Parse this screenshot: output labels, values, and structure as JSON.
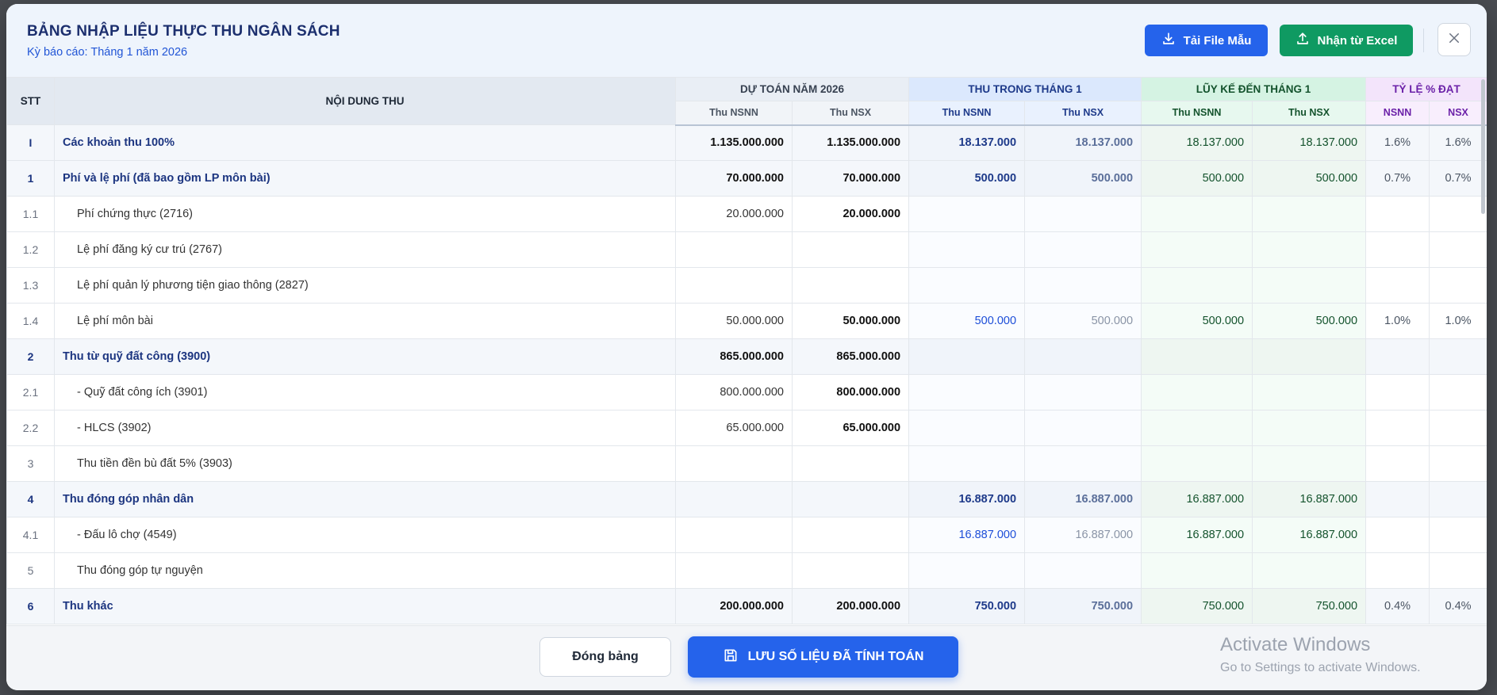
{
  "header": {
    "title": "BẢNG NHẬP LIỆU THỰC THU NGÂN SÁCH",
    "subtitle": "Kỳ báo cáo: Tháng 1 năm 2026",
    "btn_template": "Tải File Mẫu",
    "btn_excel": "Nhận từ Excel"
  },
  "table": {
    "col_stt": "STT",
    "col_content": "NỘI DUNG THU",
    "group_estimate": "DỰ TOÁN NĂM 2026",
    "group_month": "THU TRONG THÁNG 1",
    "group_cumulative": "LŨY KẾ ĐẾN THÁNG 1",
    "group_rate": "TỶ LỆ % ĐẠT",
    "sub_nsnn": "Thu NSNN",
    "sub_nsx": "Thu NSX",
    "sub_rate_nsnn": "NSNN",
    "sub_rate_nsx": "NSX",
    "rows": [
      {
        "stt": "I",
        "content": "Các khoản thu 100%",
        "group": true,
        "dt_nsnn": "1.135.000.000",
        "dt_nsx": "1.135.000.000",
        "tt_nsnn": "18.137.000",
        "tt_nsx": "18.137.000",
        "lk_nsnn": "18.137.000",
        "lk_nsx": "18.137.000",
        "tl_nsnn": "1.6%",
        "tl_nsx": "1.6%"
      },
      {
        "stt": "1",
        "content": "Phí và lệ phí (đã bao gồm LP môn bài)",
        "group": true,
        "dt_nsnn": "70.000.000",
        "dt_nsx": "70.000.000",
        "tt_nsnn": "500.000",
        "tt_nsx": "500.000",
        "lk_nsnn": "500.000",
        "lk_nsx": "500.000",
        "tl_nsnn": "0.7%",
        "tl_nsx": "0.7%"
      },
      {
        "stt": "1.1",
        "content": "Phí chứng thực (2716)",
        "group": false,
        "dt_nsnn": "20.000.000",
        "dt_nsx": "20.000.000",
        "tt_nsnn": "",
        "tt_nsx": "",
        "lk_nsnn": "",
        "lk_nsx": "",
        "tl_nsnn": "",
        "tl_nsx": ""
      },
      {
        "stt": "1.2",
        "content": "Lệ phí đăng ký cư trú (2767)",
        "group": false,
        "dt_nsnn": "",
        "dt_nsx": "",
        "tt_nsnn": "",
        "tt_nsx": "",
        "lk_nsnn": "",
        "lk_nsx": "",
        "tl_nsnn": "",
        "tl_nsx": ""
      },
      {
        "stt": "1.3",
        "content": "Lệ phí quản lý phương tiện giao thông (2827)",
        "group": false,
        "dt_nsnn": "",
        "dt_nsx": "",
        "tt_nsnn": "",
        "tt_nsx": "",
        "lk_nsnn": "",
        "lk_nsx": "",
        "tl_nsnn": "",
        "tl_nsx": ""
      },
      {
        "stt": "1.4",
        "content": "Lệ phí môn bài",
        "group": false,
        "dt_nsnn": "50.000.000",
        "dt_nsx": "50.000.000",
        "tt_nsnn": "500.000",
        "tt_nsx": "500.000",
        "lk_nsnn": "500.000",
        "lk_nsx": "500.000",
        "tl_nsnn": "1.0%",
        "tl_nsx": "1.0%"
      },
      {
        "stt": "2",
        "content": "Thu từ quỹ đất công (3900)",
        "group": true,
        "dt_nsnn": "865.000.000",
        "dt_nsx": "865.000.000",
        "tt_nsnn": "",
        "tt_nsx": "",
        "lk_nsnn": "",
        "lk_nsx": "",
        "tl_nsnn": "",
        "tl_nsx": ""
      },
      {
        "stt": "2.1",
        "content": "- Quỹ đất công ích (3901)",
        "group": false,
        "dt_nsnn": "800.000.000",
        "dt_nsx": "800.000.000",
        "tt_nsnn": "",
        "tt_nsx": "",
        "lk_nsnn": "",
        "lk_nsx": "",
        "tl_nsnn": "",
        "tl_nsx": ""
      },
      {
        "stt": "2.2",
        "content": "- HLCS (3902)",
        "group": false,
        "dt_nsnn": "65.000.000",
        "dt_nsx": "65.000.000",
        "tt_nsnn": "",
        "tt_nsx": "",
        "lk_nsnn": "",
        "lk_nsx": "",
        "tl_nsnn": "",
        "tl_nsx": ""
      },
      {
        "stt": "3",
        "content": "Thu tiền đền bù đất 5% (3903)",
        "group": false,
        "dt_nsnn": "",
        "dt_nsx": "",
        "tt_nsnn": "",
        "tt_nsx": "",
        "lk_nsnn": "",
        "lk_nsx": "",
        "tl_nsnn": "",
        "tl_nsx": ""
      },
      {
        "stt": "4",
        "content": "Thu đóng góp nhân dân",
        "group": true,
        "dt_nsnn": "",
        "dt_nsx": "",
        "tt_nsnn": "16.887.000",
        "tt_nsx": "16.887.000",
        "lk_nsnn": "16.887.000",
        "lk_nsx": "16.887.000",
        "tl_nsnn": "",
        "tl_nsx": ""
      },
      {
        "stt": "4.1",
        "content": "- Đấu lô chợ (4549)",
        "group": false,
        "dt_nsnn": "",
        "dt_nsx": "",
        "tt_nsnn": "16.887.000",
        "tt_nsx": "16.887.000",
        "lk_nsnn": "16.887.000",
        "lk_nsx": "16.887.000",
        "tl_nsnn": "",
        "tl_nsx": ""
      },
      {
        "stt": "5",
        "content": "Thu đóng góp tự nguyện",
        "group": false,
        "dt_nsnn": "",
        "dt_nsx": "",
        "tt_nsnn": "",
        "tt_nsx": "",
        "lk_nsnn": "",
        "lk_nsx": "",
        "tl_nsnn": "",
        "tl_nsx": ""
      },
      {
        "stt": "6",
        "content": "Thu khác",
        "group": true,
        "dt_nsnn": "200.000.000",
        "dt_nsx": "200.000.000",
        "tt_nsnn": "750.000",
        "tt_nsx": "750.000",
        "lk_nsnn": "750.000",
        "lk_nsx": "750.000",
        "tl_nsnn": "0.4%",
        "tl_nsx": "0.4%"
      }
    ]
  },
  "footer": {
    "btn_close": "Đóng bảng",
    "btn_save": "LƯU SỐ LIỆU ĐÃ TÍNH TOÁN"
  },
  "watermark": {
    "line1": "Activate Windows",
    "line2": "Go to Settings to activate Windows."
  },
  "colors": {
    "primary": "#2563eb",
    "success": "#0f9a62",
    "title": "#1c2f6e"
  },
  "icons": {
    "template": "download-icon",
    "excel": "upload-icon",
    "close": "close-icon",
    "save": "save-icon"
  }
}
